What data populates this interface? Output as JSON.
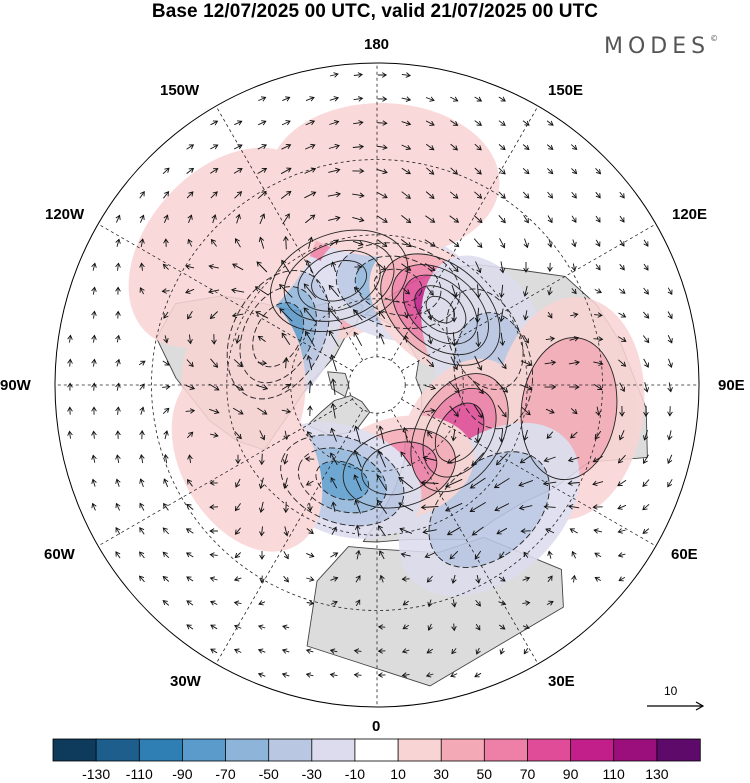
{
  "title": "Base 12/07/2025 00 UTC, valid 21/07/2025 00 UTC",
  "brand": {
    "text": "MODES",
    "mark": "©"
  },
  "longitude_labels": {
    "180": "180",
    "150E": "150E",
    "120E": "120E",
    "90E": "90E",
    "60E": "60E",
    "30E": "30E",
    "0": "0",
    "30W": "30W",
    "60W": "60W",
    "90W": "90W",
    "120W": "120W",
    "150W": "150W"
  },
  "reference_vector": {
    "label": "10"
  },
  "colorbar": {
    "ticks": [
      "-130",
      "-110",
      "-90",
      "-70",
      "-50",
      "-30",
      "-10",
      "10",
      "30",
      "50",
      "70",
      "90",
      "110",
      "130"
    ],
    "colors": [
      "#0e3a5c",
      "#1d5e8c",
      "#2f7fb5",
      "#5b9bcb",
      "#8fb4d9",
      "#b9c7e3",
      "#dcdcee",
      "#ffffff",
      "#f9d4d4",
      "#f4aab6",
      "#ee7fa6",
      "#e14c98",
      "#c21f8a",
      "#9b0f7c",
      "#5e0a6a"
    ]
  },
  "map_style": {
    "land": "#dcdcdc",
    "coast": "#444444",
    "grid": "#222222",
    "arrow": "#111111"
  },
  "anomalies": [
    {
      "lon": 200,
      "lat": 52,
      "value": 105
    },
    {
      "lon": 168,
      "lat": 55,
      "value": -70
    },
    {
      "lon": 140,
      "lat": 56,
      "value": 110
    },
    {
      "lon": 113,
      "lat": 50,
      "value": -35
    },
    {
      "lon": 97,
      "lat": 50,
      "value": -45
    },
    {
      "lon": 83,
      "lat": 28,
      "value": 40
    },
    {
      "lon": 60,
      "lat": 57,
      "value": 85
    },
    {
      "lon": 42,
      "lat": 35,
      "value": -45
    },
    {
      "lon": 15,
      "lat": 60,
      "value": 65
    },
    {
      "lon": 340,
      "lat": 55,
      "value": -75
    },
    {
      "lon": 243,
      "lat": 52,
      "value": -85
    },
    {
      "lon": 300,
      "lat": 40,
      "value": 20
    },
    {
      "lon": 270,
      "lat": 45,
      "value": 12
    },
    {
      "lon": 228,
      "lat": 25,
      "value": 15
    },
    {
      "lon": 178,
      "lat": 25,
      "value": 18
    }
  ]
}
